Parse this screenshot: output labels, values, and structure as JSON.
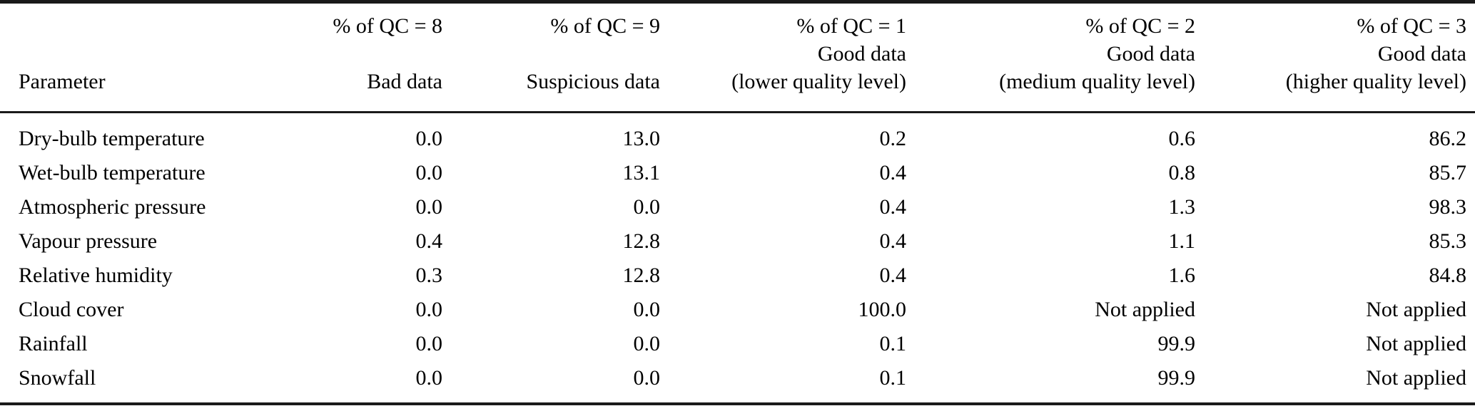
{
  "colors": {
    "background": "#ffffff",
    "text": "#000000",
    "rule": "#1a1a1a"
  },
  "table": {
    "header": {
      "param": "Parameter",
      "cols": [
        {
          "l1": "% of QC = 8",
          "l2": "",
          "l3": "Bad data"
        },
        {
          "l1": "% of QC = 9",
          "l2": "",
          "l3": "Suspicious data"
        },
        {
          "l1": "% of QC = 1",
          "l2": "Good data",
          "l3": "(lower quality level)"
        },
        {
          "l1": "% of QC = 2",
          "l2": "Good data",
          "l3": "(medium quality level)"
        },
        {
          "l1": "% of QC = 3",
          "l2": "Good data",
          "l3": "(higher quality level)"
        }
      ]
    },
    "rows": [
      [
        "Dry-bulb temperature",
        "0.0",
        "13.0",
        "0.2",
        "0.6",
        "86.2"
      ],
      [
        "Wet-bulb temperature",
        "0.0",
        "13.1",
        "0.4",
        "0.8",
        "85.7"
      ],
      [
        "Atmospheric pressure",
        "0.0",
        "0.0",
        "0.4",
        "1.3",
        "98.3"
      ],
      [
        "Vapour pressure",
        "0.4",
        "12.8",
        "0.4",
        "1.1",
        "85.3"
      ],
      [
        "Relative humidity",
        "0.3",
        "12.8",
        "0.4",
        "1.6",
        "84.8"
      ],
      [
        "Cloud cover",
        "0.0",
        "0.0",
        "100.0",
        "Not applied",
        "Not applied"
      ],
      [
        "Rainfall",
        "0.0",
        "0.0",
        "0.1",
        "99.9",
        "Not applied"
      ],
      [
        "Snowfall",
        "0.0",
        "0.0",
        "0.1",
        "99.9",
        "Not applied"
      ]
    ]
  },
  "chart_data": {
    "type": "table",
    "columns": [
      "Parameter",
      "% of QC = 8 Bad data",
      "% of QC = 9 Suspicious data",
      "% of QC = 1 Good data (lower quality level)",
      "% of QC = 2 Good data (medium quality level)",
      "% of QC = 3 Good data (higher quality level)"
    ],
    "rows": [
      [
        "Dry-bulb temperature",
        0.0,
        13.0,
        0.2,
        0.6,
        86.2
      ],
      [
        "Wet-bulb temperature",
        0.0,
        13.1,
        0.4,
        0.8,
        85.7
      ],
      [
        "Atmospheric pressure",
        0.0,
        0.0,
        0.4,
        1.3,
        98.3
      ],
      [
        "Vapour pressure",
        0.4,
        12.8,
        0.4,
        1.1,
        85.3
      ],
      [
        "Relative humidity",
        0.3,
        12.8,
        0.4,
        1.6,
        84.8
      ],
      [
        "Cloud cover",
        0.0,
        0.0,
        100.0,
        "Not applied",
        "Not applied"
      ],
      [
        "Rainfall",
        0.0,
        0.0,
        0.1,
        99.9,
        "Not applied"
      ],
      [
        "Snowfall",
        0.0,
        0.0,
        0.1,
        99.9,
        "Not applied"
      ]
    ]
  }
}
